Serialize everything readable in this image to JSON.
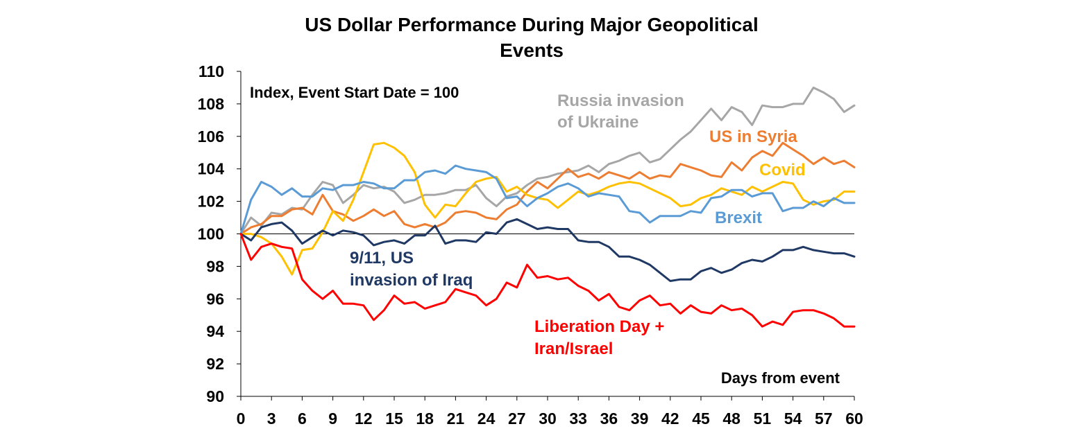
{
  "chart_data": {
    "type": "line",
    "title_lines": [
      "US Dollar Performance During Major Geopolitical",
      "Events"
    ],
    "annotation": "Index, Event Start Date = 100",
    "xlabel": "Days from event",
    "xlim": [
      0,
      60
    ],
    "ylim": [
      90,
      110
    ],
    "x_ticks": [
      0,
      3,
      6,
      9,
      12,
      15,
      18,
      21,
      24,
      27,
      30,
      33,
      36,
      39,
      42,
      45,
      48,
      51,
      54,
      57,
      60
    ],
    "y_ticks": [
      90,
      92,
      94,
      96,
      98,
      100,
      102,
      104,
      106,
      108,
      110
    ],
    "reference_line": 100,
    "series": [
      {
        "name": "Russia invasion of Ukraine",
        "label_lines": [
          "Russia invasion",
          "of Ukraine"
        ],
        "color": "#A6A6A6",
        "values": [
          100,
          101.0,
          100.5,
          101.3,
          101.2,
          101.6,
          101.5,
          102.4,
          103.2,
          103.0,
          101.9,
          102.4,
          103.0,
          102.8,
          102.9,
          102.6,
          101.9,
          102.1,
          102.4,
          102.4,
          102.5,
          102.7,
          102.7,
          103.0,
          102.2,
          101.7,
          102.3,
          102.5,
          103.0,
          103.4,
          103.5,
          103.7,
          103.8,
          103.9,
          104.2,
          103.8,
          104.3,
          104.5,
          104.8,
          105.0,
          104.4,
          104.6,
          105.2,
          105.8,
          106.3,
          107.0,
          107.7,
          107.0,
          107.8,
          107.5,
          106.7,
          107.9,
          107.8,
          107.8,
          108.0,
          108.0,
          109.0,
          108.7,
          108.3,
          107.5,
          107.9
        ]
      },
      {
        "name": "US in Syria",
        "label_lines": [
          "US in Syria"
        ],
        "color": "#ED7D31",
        "values": [
          100,
          100.4,
          100.6,
          101.1,
          101.1,
          101.5,
          101.6,
          101.2,
          102.4,
          101.4,
          101.2,
          100.8,
          101.1,
          101.5,
          101.1,
          101.4,
          100.6,
          100.4,
          100.6,
          100.4,
          100.7,
          101.3,
          101.4,
          101.3,
          101.0,
          100.9,
          101.5,
          101.8,
          102.6,
          103.2,
          102.8,
          103.4,
          104.0,
          103.5,
          103.7,
          103.4,
          103.8,
          103.6,
          103.4,
          103.8,
          103.4,
          103.6,
          103.5,
          104.3,
          104.1,
          103.9,
          103.6,
          103.5,
          104.4,
          103.9,
          104.7,
          105.1,
          104.8,
          105.6,
          105.2,
          104.8,
          104.3,
          104.7,
          104.3,
          104.5,
          104.1
        ]
      },
      {
        "name": "Covid",
        "label_lines": [
          "Covid"
        ],
        "color": "#FFC000",
        "values": [
          100,
          100.0,
          99.8,
          99.4,
          98.6,
          97.5,
          99.0,
          99.1,
          100.1,
          101.4,
          100.8,
          102.1,
          103.8,
          105.5,
          105.6,
          105.3,
          104.8,
          103.8,
          101.8,
          101.0,
          101.8,
          101.7,
          102.5,
          103.2,
          103.4,
          103.5,
          102.6,
          102.9,
          102.4,
          102.2,
          102.1,
          101.6,
          102.1,
          102.6,
          102.4,
          102.6,
          102.9,
          103.1,
          103.2,
          103.1,
          102.8,
          102.5,
          102.2,
          101.7,
          101.8,
          102.2,
          102.4,
          102.8,
          102.6,
          102.4,
          102.9,
          102.6,
          102.9,
          103.2,
          103.1,
          102.1,
          101.8,
          102.0,
          102.1,
          102.6,
          102.6
        ]
      },
      {
        "name": "Brexit",
        "label_lines": [
          "Brexit"
        ],
        "color": "#5B9BD5",
        "values": [
          100,
          102.1,
          103.2,
          102.9,
          102.4,
          102.8,
          102.3,
          102.3,
          102.8,
          102.7,
          103.0,
          103.0,
          103.2,
          103.1,
          102.8,
          102.8,
          103.3,
          103.3,
          103.8,
          103.9,
          103.7,
          104.2,
          104.0,
          103.9,
          103.8,
          103.4,
          102.2,
          102.3,
          101.7,
          102.2,
          102.5,
          102.9,
          103.1,
          102.8,
          102.3,
          102.5,
          102.4,
          102.3,
          101.4,
          101.3,
          100.7,
          101.1,
          101.1,
          101.1,
          101.4,
          101.3,
          102.2,
          102.3,
          102.7,
          102.7,
          102.3,
          102.5,
          102.5,
          101.4,
          101.6,
          101.6,
          102.0,
          101.7,
          102.2,
          101.9,
          101.9
        ]
      },
      {
        "name": "9/11, US invasion of Iraq",
        "label_lines": [
          "9/11, US",
          "invasion of Iraq"
        ],
        "color": "#1F3864",
        "values": [
          100,
          99.6,
          100.4,
          100.6,
          100.7,
          100.2,
          99.4,
          99.8,
          100.2,
          99.9,
          100.2,
          100.1,
          99.9,
          99.3,
          99.5,
          99.6,
          99.4,
          99.9,
          99.9,
          100.5,
          99.4,
          99.6,
          99.6,
          99.5,
          100.1,
          100.0,
          100.7,
          100.9,
          100.6,
          100.3,
          100.4,
          100.3,
          100.3,
          99.6,
          99.5,
          99.5,
          99.2,
          98.6,
          98.6,
          98.4,
          98.1,
          97.6,
          97.1,
          97.2,
          97.2,
          97.7,
          97.9,
          97.6,
          97.8,
          98.2,
          98.4,
          98.3,
          98.6,
          99.0,
          99.0,
          99.2,
          99.0,
          98.9,
          98.8,
          98.8,
          98.6
        ]
      },
      {
        "name": "Liberation Day + Iran/Israel",
        "label_lines": [
          "Liberation Day +",
          "Iran/Israel"
        ],
        "color": "#FF0000",
        "values": [
          100,
          98.4,
          99.2,
          99.4,
          99.2,
          99.1,
          97.2,
          96.5,
          96.0,
          96.5,
          95.7,
          95.7,
          95.6,
          94.7,
          95.3,
          96.2,
          95.7,
          95.8,
          95.4,
          95.6,
          95.8,
          96.6,
          96.4,
          96.2,
          95.6,
          96.0,
          97.0,
          96.7,
          98.1,
          97.3,
          97.4,
          97.2,
          97.3,
          96.8,
          96.5,
          95.9,
          96.3,
          95.5,
          95.3,
          95.9,
          96.2,
          95.6,
          95.7,
          95.1,
          95.6,
          95.2,
          95.1,
          95.6,
          95.3,
          95.4,
          95.0,
          94.3,
          94.6,
          94.4,
          95.2,
          95.3,
          95.3,
          95.1,
          94.8,
          94.3,
          94.3
        ]
      }
    ]
  }
}
